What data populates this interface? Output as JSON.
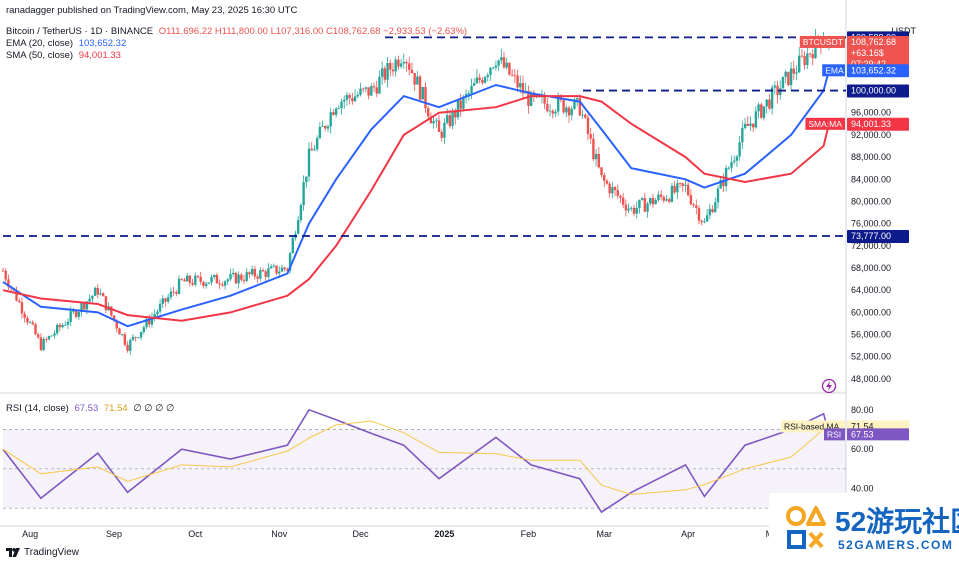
{
  "header": {
    "line1": "ranadagger published on TradingView.com, May 23, 2025 16:30 UTC",
    "symbol": "Bitcoin / TetherUS · 1D · BINANCE",
    "ohlc": "O111,696.22 H111,800.00 L107,316.00 C108,762.68 −2,933.53 (−2.63%)",
    "ema": "EMA (20, close)",
    "ema_value": "103,652.32",
    "sma": "SMA (50, close)",
    "sma_value": "94,001.33",
    "rsi": "RSI (14, close)",
    "rsi_value": "67.53",
    "rsi_ma_value": "71.54",
    "rsi_extra": "∅ ∅ ∅ ∅"
  },
  "price_scale": {
    "currency": "USDT",
    "ticks": [
      "48,000.00",
      "52,000.00",
      "56,000.00",
      "60,000.00",
      "64,000.00",
      "68,000.00",
      "72,000.00",
      "76,000.00",
      "80,000.00",
      "84,000.00",
      "88,000.00",
      "92,000.00",
      "96,000.00"
    ],
    "labels": {
      "symbol": "BTCUSDT",
      "last": "108,762.68",
      "change": "+63.16$",
      "countdown": "07:29:42",
      "ema_tag": "EMA",
      "ema": "103,652.32",
      "sma_tag": "SMA:MA",
      "sma": "94,001.33",
      "level_top": "109,588.00",
      "level_mid": "100,000.00",
      "level_low": "73,777.00"
    }
  },
  "rsi_scale": {
    "ticks": [
      "80.00",
      "60.00",
      "40.00"
    ],
    "ma_tag": "RSI-based MA",
    "ma": "71.54",
    "rsi_tag": "RSI",
    "rsi": "67.53"
  },
  "time_axis": [
    "Aug",
    "Sep",
    "Oct",
    "Nov",
    "Dec",
    "2025",
    "Feb",
    "Mar",
    "Apr",
    "M"
  ],
  "footer": {
    "brand": "TradingView"
  },
  "colors": {
    "up": "#26a69a",
    "down": "#ef5350",
    "ema": "#2962ff",
    "sma": "#f23645",
    "rsi": "#7e57c2",
    "rsi_ma": "#f7c94a",
    "level": "#0d1b8c"
  },
  "watermark": {
    "text": "52游玩社区",
    "sub": "52GAMERS.COM"
  },
  "chart_data": {
    "type": "candlestick",
    "symbol": "BTCUSDT",
    "interval": "1D",
    "ylim": [
      46000,
      112000
    ],
    "horizontal_levels": [
      109588,
      100000,
      73777
    ],
    "x": [
      "2024-07-22",
      "2024-08-05",
      "2024-08-26",
      "2024-09-06",
      "2024-09-26",
      "2024-10-14",
      "2024-11-04",
      "2024-11-12",
      "2024-11-22",
      "2024-12-05",
      "2024-12-17",
      "2024-12-30",
      "2025-01-20",
      "2025-02-02",
      "2025-02-20",
      "2025-02-28",
      "2025-03-11",
      "2025-03-31",
      "2025-04-07",
      "2025-04-22",
      "2025-05-09",
      "2025-05-21",
      "2025-05-23"
    ],
    "series": [
      {
        "name": "Close",
        "values": [
          67500,
          54000,
          64000,
          54000,
          65500,
          66000,
          68000,
          88000,
          98000,
          100000,
          107000,
          92000,
          106000,
          98000,
          97000,
          84000,
          78500,
          82500,
          76000,
          93000,
          103000,
          110000,
          108762.68
        ]
      },
      {
        "name": "EMA (20, close)",
        "values": [
          65500,
          61000,
          60000,
          57500,
          60500,
          63000,
          67000,
          76000,
          84000,
          93000,
          99000,
          97000,
          101000,
          99500,
          98000,
          93000,
          86000,
          84000,
          82500,
          85000,
          92000,
          100000,
          103652.32
        ]
      },
      {
        "name": "SMA (50, close)",
        "values": [
          64000,
          62500,
          61500,
          59500,
          58500,
          60000,
          63000,
          66000,
          72000,
          82000,
          92000,
          96000,
          97000,
          99000,
          99000,
          98000,
          94000,
          88000,
          85000,
          83500,
          85000,
          90000,
          94001.33
        ]
      }
    ],
    "rsi": {
      "name": "RSI (14, close)",
      "values": [
        60,
        35,
        58,
        38,
        60,
        55,
        62,
        80,
        75,
        68,
        62,
        45,
        66,
        52,
        45,
        28,
        38,
        52,
        36,
        62,
        70,
        78,
        67.53
      ],
      "ma": 71.54,
      "ylim": [
        25,
        85
      ],
      "band": [
        30,
        70
      ]
    }
  }
}
